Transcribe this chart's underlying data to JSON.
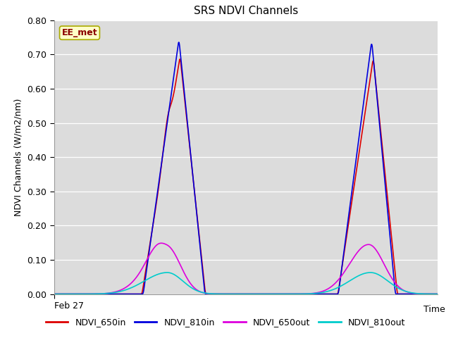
{
  "title": "SRS NDVI Channels",
  "ylabel": "NDVI Channels (W/m2/nm)",
  "xlabel": "Time",
  "x_tick_label": "Feb 27",
  "ylim": [
    0.0,
    0.8
  ],
  "background_color": "#dcdcdc",
  "annotation_text": "EE_met",
  "annotation_color": "#8B0000",
  "annotation_bg": "#ffffc8",
  "legend": [
    "NDVI_650in",
    "NDVI_810in",
    "NDVI_650out",
    "NDVI_810out"
  ],
  "line_colors": [
    "#dd0000",
    "#0000dd",
    "#dd00dd",
    "#00cccc"
  ],
  "title_fontsize": 11,
  "label_fontsize": 9
}
